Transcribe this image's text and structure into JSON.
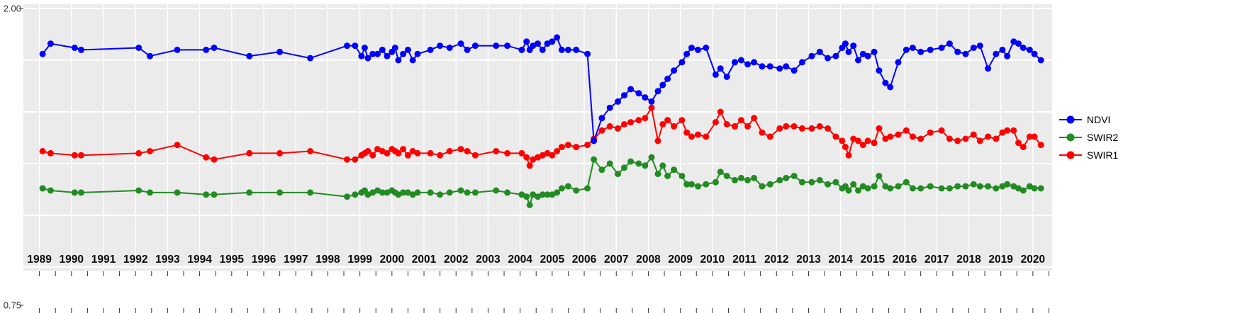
{
  "chart_data": {
    "type": "line",
    "title": "",
    "xlabel": "",
    "ylabel": "",
    "xlim": [
      1988.5,
      2020.6
    ],
    "ylim": [
      0.75,
      2.0
    ],
    "y_gridlines": [
      2.0,
      1.75,
      1.5,
      1.25,
      1.0,
      0.75
    ],
    "y_axis_labels": [
      "2.00",
      "0.75"
    ],
    "x_tick_labels": [
      "1989",
      "1990",
      "1991",
      "1992",
      "1993",
      "1994",
      "1995",
      "1996",
      "1997",
      "1998",
      "1999",
      "2000",
      "2001",
      "2002",
      "2003",
      "2004",
      "2005",
      "2006",
      "2007",
      "2008",
      "2009",
      "2010",
      "2011",
      "2012",
      "2013",
      "2014",
      "2015",
      "2016",
      "2017",
      "2018",
      "2019",
      "2020"
    ],
    "grid": true,
    "panel_bg": "#EBEBEB",
    "grid_color": "#FFFFFF",
    "tick_color": "#333333",
    "legend_position": "right",
    "x": [
      1989.1,
      1989.35,
      1990.1,
      1990.3,
      1992.1,
      1992.45,
      1993.3,
      1994.2,
      1994.45,
      1995.55,
      1996.5,
      1997.45,
      1998.6,
      1998.85,
      1999.05,
      1999.15,
      1999.25,
      1999.4,
      1999.55,
      1999.7,
      1999.85,
      2000.0,
      2000.1,
      2000.2,
      2000.35,
      2000.5,
      2000.65,
      2000.8,
      2001.2,
      2001.5,
      2001.8,
      2002.15,
      2002.35,
      2002.6,
      2003.25,
      2003.6,
      2004.05,
      2004.2,
      2004.3,
      2004.4,
      2004.55,
      2004.7,
      2004.85,
      2005.0,
      2005.15,
      2005.3,
      2005.5,
      2005.75,
      2006.1,
      2006.3,
      2006.55,
      2006.8,
      2007.05,
      2007.25,
      2007.45,
      2007.7,
      2007.9,
      2008.1,
      2008.3,
      2008.45,
      2008.6,
      2008.8,
      2009.05,
      2009.2,
      2009.35,
      2009.55,
      2009.8,
      2010.1,
      2010.25,
      2010.45,
      2010.7,
      2010.9,
      2011.1,
      2011.3,
      2011.55,
      2011.8,
      2012.1,
      2012.3,
      2012.55,
      2012.8,
      2013.1,
      2013.35,
      2013.6,
      2013.85,
      2014.05,
      2014.15,
      2014.25,
      2014.4,
      2014.55,
      2014.7,
      2014.85,
      2015.05,
      2015.2,
      2015.4,
      2015.55,
      2015.8,
      2016.05,
      2016.25,
      2016.5,
      2016.8,
      2017.15,
      2017.4,
      2017.65,
      2017.9,
      2018.15,
      2018.35,
      2018.6,
      2018.85,
      2019.05,
      2019.2,
      2019.4,
      2019.55,
      2019.7,
      2019.9,
      2020.05,
      2020.25
    ],
    "series": [
      {
        "name": "NDVI",
        "color": "#0000FF",
        "values": [
          1.78,
          1.83,
          1.81,
          1.8,
          1.81,
          1.77,
          1.8,
          1.8,
          1.81,
          1.77,
          1.79,
          1.76,
          1.82,
          1.82,
          1.77,
          1.81,
          1.76,
          1.78,
          1.78,
          1.8,
          1.77,
          1.79,
          1.81,
          1.75,
          1.78,
          1.8,
          1.75,
          1.78,
          1.8,
          1.82,
          1.81,
          1.83,
          1.8,
          1.82,
          1.82,
          1.82,
          1.8,
          1.84,
          1.8,
          1.82,
          1.83,
          1.8,
          1.83,
          1.84,
          1.86,
          1.8,
          1.8,
          1.8,
          1.78,
          1.36,
          1.47,
          1.52,
          1.55,
          1.58,
          1.61,
          1.59,
          1.57,
          1.55,
          1.6,
          1.63,
          1.66,
          1.7,
          1.74,
          1.78,
          1.81,
          1.8,
          1.81,
          1.68,
          1.71,
          1.67,
          1.74,
          1.75,
          1.73,
          1.74,
          1.72,
          1.72,
          1.71,
          1.72,
          1.7,
          1.74,
          1.77,
          1.79,
          1.76,
          1.77,
          1.81,
          1.83,
          1.79,
          1.82,
          1.75,
          1.78,
          1.77,
          1.79,
          1.7,
          1.64,
          1.62,
          1.74,
          1.8,
          1.81,
          1.79,
          1.8,
          1.81,
          1.83,
          1.79,
          1.78,
          1.81,
          1.82,
          1.71,
          1.78,
          1.8,
          1.77,
          1.84,
          1.83,
          1.81,
          1.8,
          1.78,
          1.75
        ]
      },
      {
        "name": "SWIR2",
        "color": "#228B22",
        "values": [
          1.13,
          1.12,
          1.11,
          1.11,
          1.12,
          1.11,
          1.11,
          1.1,
          1.1,
          1.11,
          1.11,
          1.11,
          1.09,
          1.1,
          1.11,
          1.12,
          1.1,
          1.11,
          1.12,
          1.11,
          1.11,
          1.12,
          1.11,
          1.1,
          1.11,
          1.11,
          1.1,
          1.11,
          1.11,
          1.1,
          1.11,
          1.12,
          1.11,
          1.11,
          1.12,
          1.11,
          1.1,
          1.09,
          1.05,
          1.1,
          1.09,
          1.1,
          1.1,
          1.1,
          1.11,
          1.13,
          1.14,
          1.12,
          1.13,
          1.27,
          1.22,
          1.25,
          1.2,
          1.23,
          1.26,
          1.25,
          1.24,
          1.28,
          1.2,
          1.24,
          1.19,
          1.22,
          1.19,
          1.15,
          1.15,
          1.14,
          1.15,
          1.16,
          1.21,
          1.19,
          1.17,
          1.18,
          1.17,
          1.18,
          1.14,
          1.15,
          1.17,
          1.18,
          1.19,
          1.16,
          1.16,
          1.17,
          1.15,
          1.16,
          1.13,
          1.14,
          1.12,
          1.15,
          1.12,
          1.14,
          1.13,
          1.14,
          1.19,
          1.14,
          1.13,
          1.14,
          1.16,
          1.13,
          1.13,
          1.14,
          1.13,
          1.13,
          1.14,
          1.14,
          1.15,
          1.14,
          1.14,
          1.13,
          1.14,
          1.15,
          1.14,
          1.13,
          1.12,
          1.14,
          1.13,
          1.13
        ]
      },
      {
        "name": "SWIR1",
        "color": "#FF0000",
        "values": [
          1.31,
          1.3,
          1.29,
          1.29,
          1.3,
          1.31,
          1.34,
          1.28,
          1.27,
          1.3,
          1.3,
          1.31,
          1.27,
          1.27,
          1.29,
          1.3,
          1.31,
          1.29,
          1.32,
          1.31,
          1.3,
          1.32,
          1.31,
          1.3,
          1.32,
          1.29,
          1.31,
          1.3,
          1.3,
          1.29,
          1.31,
          1.32,
          1.31,
          1.29,
          1.31,
          1.3,
          1.3,
          1.28,
          1.24,
          1.27,
          1.28,
          1.29,
          1.3,
          1.29,
          1.31,
          1.33,
          1.34,
          1.33,
          1.34,
          1.37,
          1.41,
          1.43,
          1.42,
          1.44,
          1.45,
          1.46,
          1.47,
          1.52,
          1.36,
          1.44,
          1.46,
          1.43,
          1.46,
          1.4,
          1.38,
          1.39,
          1.38,
          1.45,
          1.5,
          1.44,
          1.43,
          1.46,
          1.43,
          1.47,
          1.4,
          1.38,
          1.42,
          1.43,
          1.43,
          1.42,
          1.42,
          1.43,
          1.42,
          1.38,
          1.36,
          1.33,
          1.29,
          1.37,
          1.36,
          1.34,
          1.36,
          1.35,
          1.42,
          1.37,
          1.38,
          1.39,
          1.41,
          1.38,
          1.37,
          1.4,
          1.41,
          1.37,
          1.36,
          1.37,
          1.39,
          1.36,
          1.38,
          1.37,
          1.4,
          1.41,
          1.41,
          1.35,
          1.33,
          1.38,
          1.38,
          1.34
        ]
      }
    ]
  }
}
